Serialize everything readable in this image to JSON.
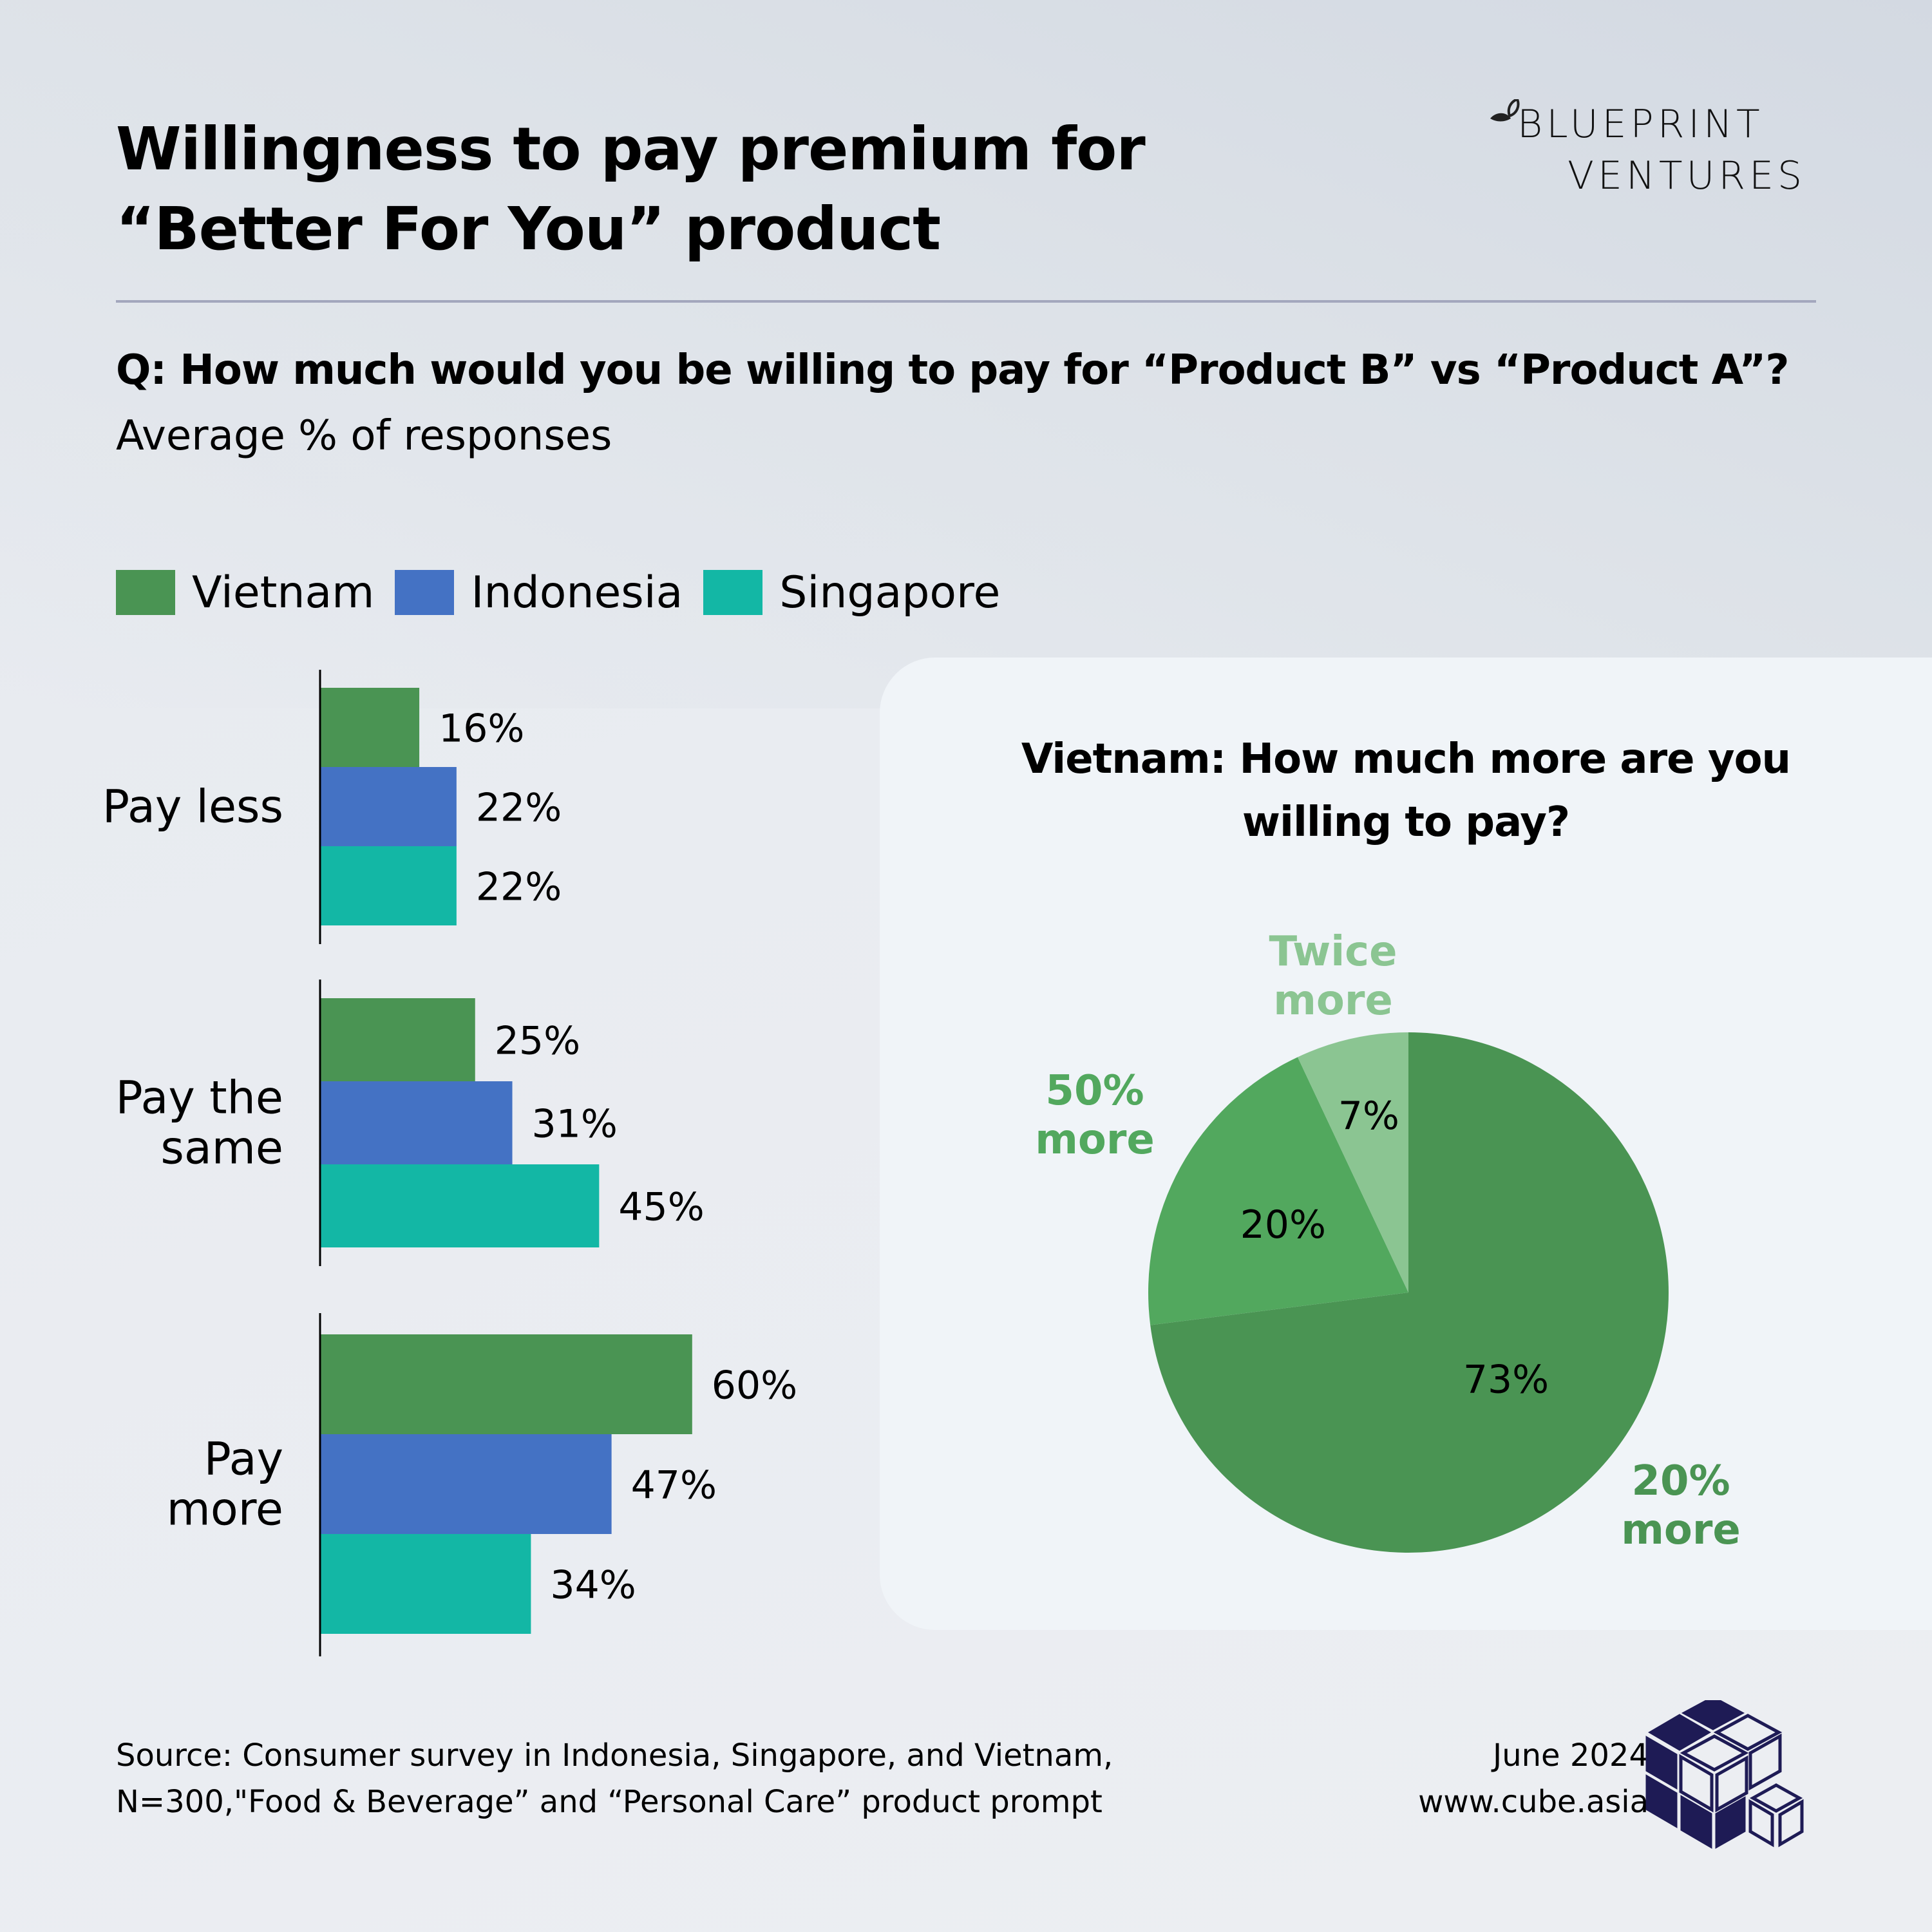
{
  "header": {
    "title_line1": "Willingness to pay premium for",
    "title_line2": "“Better For You” product",
    "logo_line1": "BLUEPRINT",
    "logo_line2": "VENTURES"
  },
  "question": "Q: How much would you be willing to pay for “Product B” vs “Product A”?",
  "subtitle": "Average % of responses",
  "colors": {
    "vietnam": "#4a9453",
    "indonesia": "#4472c4",
    "singapore": "#13b7a5",
    "pie_20": "#4a9453",
    "pie_50": "#52a85e",
    "pie_twice": "#8bc592",
    "cube": "#1e1b55"
  },
  "chart_data": [
    {
      "type": "bar",
      "orientation": "horizontal",
      "title": "",
      "categories": [
        "Pay less",
        "Pay the same",
        "Pay more"
      ],
      "category_lines": [
        [
          "Pay less"
        ],
        [
          "Pay the",
          "same"
        ],
        [
          "Pay",
          "more"
        ]
      ],
      "series": [
        {
          "name": "Vietnam",
          "values": [
            16,
            25,
            60
          ],
          "labels": [
            "16%",
            "25%",
            "60%"
          ]
        },
        {
          "name": "Indonesia",
          "values": [
            22,
            31,
            47
          ],
          "labels": [
            "22%",
            "31%",
            "47%"
          ]
        },
        {
          "name": "Singapore",
          "values": [
            22,
            45,
            34
          ],
          "labels": [
            "22%",
            "45%",
            "34%"
          ]
        }
      ],
      "unit": "%",
      "xlim": [
        0,
        100
      ],
      "legend_position": "top-left",
      "grid": false
    },
    {
      "type": "pie",
      "title_line1": "Vietnam: How much more are you",
      "title_line2": "willing to pay?",
      "slices": [
        {
          "name": "20% more",
          "name_lines": [
            "20%",
            "more"
          ],
          "value": 73,
          "label": "73%"
        },
        {
          "name": "50% more",
          "name_lines": [
            "50%",
            "more"
          ],
          "value": 20,
          "label": "20%"
        },
        {
          "name": "Twice more",
          "name_lines": [
            "Twice",
            "more"
          ],
          "value": 7,
          "label": "7%"
        }
      ]
    }
  ],
  "footer": {
    "source_line1": "Source: Consumer survey in Indonesia, Singapore, and Vietnam,",
    "source_line2": "N=300,\"Food & Beverage” and “Personal Care” product prompt",
    "date": "June 2024",
    "website": "www.cube.asia"
  }
}
